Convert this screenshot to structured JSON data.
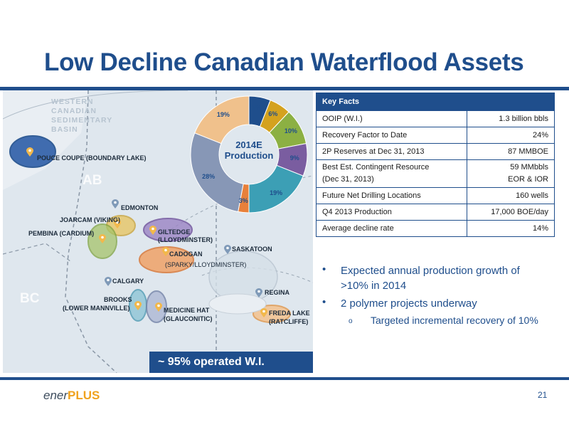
{
  "title": "Low Decline Canadian Waterflood Assets",
  "map": {
    "region_label": [
      "WESTERN",
      "CANADIAN",
      "SEDIMENTARY",
      "BASIN"
    ],
    "prov_ab": "AB",
    "prov_bc": "BC",
    "labels": {
      "pouce": "POUCE COUPE (BOUNDARY LAKE)",
      "edmonton": "EDMONTON",
      "joarcam": "JOARCAM (VIKING)",
      "pembina": "PEMBINA (CARDIUM)",
      "giltedge1": "GILTEDGE",
      "giltedge2": "(LLOYDMINSTER)",
      "saskatoon": "SASKATOON",
      "cadogan1": "CADOGAN",
      "cadogan2": "(SPARKY/LLOYDMINSTER)",
      "calgary": "CALGARY",
      "brooks1": "BROOKS",
      "brooks2": "(LOWER MANNVILLE)",
      "medhat1": "MEDICINE HAT",
      "medhat2": "(GLAUCONITIC)",
      "regina": "REGINA",
      "freda1": "FREDA LAKE",
      "freda2": "(RATCLIFFE)"
    },
    "operated_box": "~ 95% operated W.I."
  },
  "chart_data": {
    "type": "pie",
    "title": "2014E Production",
    "center_label": [
      "2014E",
      "Production"
    ],
    "slices": [
      {
        "label": "6%",
        "value": 6,
        "color": "#1f4e8c"
      },
      {
        "label": "6%",
        "value": 6,
        "color": "#d4a21f"
      },
      {
        "label": "10%",
        "value": 10,
        "color": "#8cb043"
      },
      {
        "label": "9%",
        "value": 9,
        "color": "#7a5da0"
      },
      {
        "label": "19%",
        "value": 19,
        "color": "#3c9fb5"
      },
      {
        "label": "3%",
        "value": 3,
        "color": "#e8803a"
      },
      {
        "label": "28%",
        "value": 28,
        "color": "#8797b6"
      },
      {
        "label": "19%",
        "value": 19,
        "color": "#f0c18c"
      }
    ]
  },
  "key_facts": {
    "header": "Key Facts",
    "rows": [
      {
        "label": "OOIP (W.I.)",
        "value": "1.3 billion bbls"
      },
      {
        "label": "Recovery Factor to Date",
        "value": "24%"
      },
      {
        "label": "2P Reserves  at Dec 31, 2013",
        "value": "87 MMBOE"
      },
      {
        "label": "Best Est. Contingent Resource",
        "label2": "(Dec 31, 2013)",
        "value": "59 MMbbls",
        "value2": "EOR & IOR"
      },
      {
        "label": "Future Net Drilling Locations",
        "value": "160 wells"
      },
      {
        "label": "Q4 2013 Production",
        "value": "17,000 BOE/day"
      },
      {
        "label": "Average  decline rate",
        "value": "14%"
      }
    ]
  },
  "bullets": {
    "b1_line1": "Expected annual production growth of",
    "b1_line2": ">10% in 2014",
    "b2": "2 polymer projects underway",
    "sub1": "Targeted incremental recovery of 10%",
    "bullet_char": "•",
    "sub_char": "o"
  },
  "footer": {
    "logo_a": "ener",
    "logo_b": "PLUS",
    "page": "21"
  },
  "colors": {
    "brand_blue": "#1f4e8c",
    "logo_orange": "#f0a21e"
  }
}
